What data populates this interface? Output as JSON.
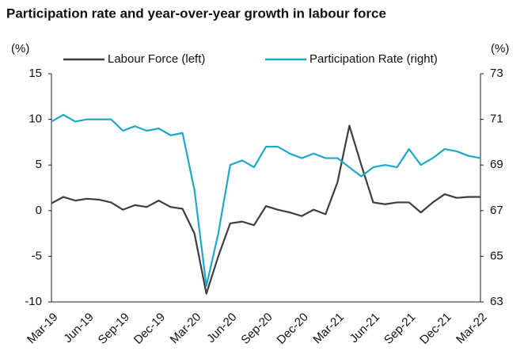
{
  "chart_data": {
    "type": "line",
    "title": "Participation rate and year-over-year growth in labour force",
    "y_label": "(%)",
    "y2_label": "(%)",
    "categories": [
      "Mar-19",
      null,
      null,
      "Jun-19",
      null,
      null,
      "Sep-19",
      null,
      null,
      "Dec-19",
      null,
      null,
      "Mar-20",
      null,
      null,
      "Jun-20",
      null,
      null,
      "Sep-20",
      null,
      null,
      "Dec-20",
      null,
      null,
      "Mar-21",
      null,
      null,
      "Jun-21",
      null,
      null,
      "Sep-21",
      null,
      null,
      "Dec-21",
      null,
      null,
      "Mar-22"
    ],
    "series": [
      {
        "name": "Labour Force (left)",
        "color": "#3a3f44",
        "axis": "y",
        "values": [
          0.8,
          1.5,
          1.1,
          1.3,
          1.2,
          0.9,
          0.1,
          0.6,
          0.4,
          1.1,
          0.4,
          0.2,
          -2.5,
          -9.1,
          -5.0,
          -1.4,
          -1.2,
          -1.6,
          0.5,
          0.1,
          -0.2,
          -0.6,
          0.1,
          -0.4,
          3.1,
          9.3,
          5.0,
          0.9,
          0.7,
          0.9,
          0.9,
          -0.2,
          0.9,
          1.8,
          1.4,
          1.5,
          1.5
        ]
      },
      {
        "name": "Participation Rate (right)",
        "color": "#1fa8c9",
        "axis": "y2",
        "values": [
          70.9,
          71.2,
          70.9,
          71.0,
          71.0,
          71.0,
          70.5,
          70.7,
          70.5,
          70.6,
          70.3,
          70.4,
          67.9,
          63.7,
          66.0,
          69.0,
          69.2,
          68.9,
          69.8,
          69.8,
          69.5,
          69.3,
          69.5,
          69.3,
          69.3,
          68.9,
          68.5,
          68.9,
          69.0,
          68.9,
          69.7,
          69.0,
          69.3,
          69.7,
          69.6,
          69.4,
          69.3
        ]
      }
    ],
    "ylim": [
      -10,
      15
    ],
    "yticks": [
      -10,
      -5,
      0,
      5,
      10,
      15
    ],
    "y2lim": [
      63,
      73
    ],
    "y2ticks": [
      63,
      65,
      67,
      69,
      71,
      73
    ],
    "grid": false,
    "legend": "top"
  }
}
